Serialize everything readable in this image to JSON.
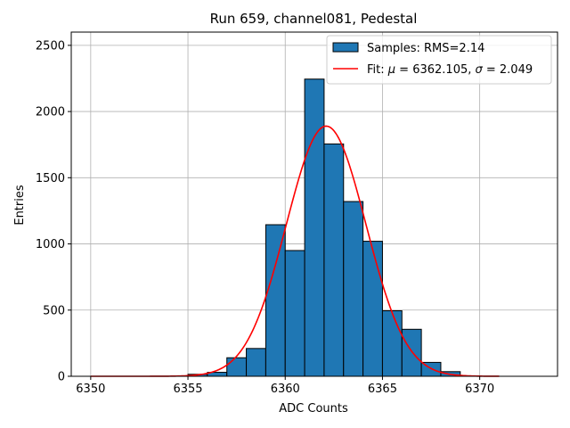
{
  "chart_data": {
    "type": "bar",
    "title": "Run 659, channel081, Pedestal",
    "xlabel": "ADC Counts",
    "ylabel": "Entries",
    "xlim": [
      6349,
      6374
    ],
    "ylim": [
      0,
      2600
    ],
    "xticks": [
      6350,
      6355,
      6360,
      6365,
      6370
    ],
    "yticks": [
      0,
      500,
      1000,
      1500,
      2000,
      2500
    ],
    "grid": true,
    "legend_position": "top-right",
    "bin_width": 1,
    "bins": [
      {
        "x": 6355,
        "count": 15
      },
      {
        "x": 6356,
        "count": 30
      },
      {
        "x": 6357,
        "count": 140
      },
      {
        "x": 6358,
        "count": 210
      },
      {
        "x": 6359,
        "count": 1145
      },
      {
        "x": 6360,
        "count": 950
      },
      {
        "x": 6361,
        "count": 2245
      },
      {
        "x": 6362,
        "count": 1755
      },
      {
        "x": 6363,
        "count": 1320
      },
      {
        "x": 6364,
        "count": 1020
      },
      {
        "x": 6365,
        "count": 495
      },
      {
        "x": 6366,
        "count": 355
      },
      {
        "x": 6367,
        "count": 105
      },
      {
        "x": 6368,
        "count": 35
      }
    ],
    "bar_color": "#1f77b4",
    "fit": {
      "mu": 6362.105,
      "sigma": 2.049,
      "amplitude": 1890,
      "x_range": [
        6350,
        6371
      ],
      "color": "#ff0000"
    },
    "legend": [
      {
        "label": "Samples: RMS=2.14",
        "kind": "patch",
        "color": "#1f77b4"
      },
      {
        "label_prefix": "Fit: ",
        "label_mu": "μ",
        "label_mid": " = 6362.105, ",
        "label_sigma": "σ",
        "label_end": " = 2.049",
        "kind": "line",
        "color": "#ff0000"
      }
    ]
  }
}
